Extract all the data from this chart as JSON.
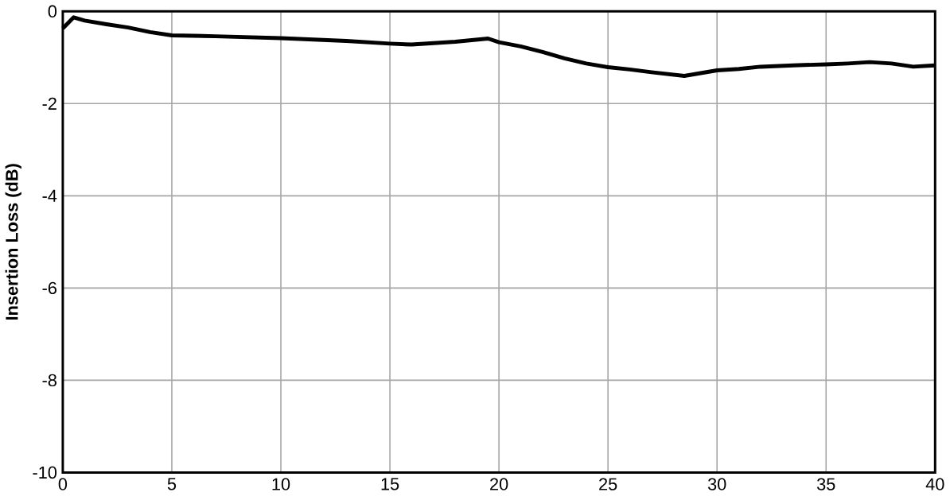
{
  "chart_data": {
    "type": "line",
    "ylabel": "Insertion Loss (dB)",
    "xlim": [
      0,
      40
    ],
    "ylim": [
      -10,
      0
    ],
    "xticks": [
      0,
      5,
      10,
      15,
      20,
      25,
      30,
      35,
      40
    ],
    "yticks": [
      -10,
      -8,
      -6,
      -4,
      -2,
      0
    ],
    "grid": true,
    "series": [
      {
        "color": "#000000",
        "x": [
          0,
          0.5,
          1,
          2,
          3,
          4,
          5,
          7,
          10,
          13,
          15,
          16,
          18,
          19.5,
          20,
          21,
          22,
          23,
          24,
          25,
          26,
          27,
          28.5,
          30,
          31,
          32,
          33.5,
          35,
          36,
          37,
          38,
          39,
          40
        ],
        "values": [
          -0.37,
          -0.13,
          -0.2,
          -0.28,
          -0.35,
          -0.45,
          -0.52,
          -0.54,
          -0.58,
          -0.64,
          -0.7,
          -0.72,
          -0.66,
          -0.59,
          -0.67,
          -0.76,
          -0.88,
          -1.02,
          -1.13,
          -1.21,
          -1.26,
          -1.32,
          -1.4,
          -1.28,
          -1.25,
          -1.2,
          -1.17,
          -1.15,
          -1.13,
          -1.1,
          -1.13,
          -1.2,
          -1.17
        ]
      }
    ]
  }
}
